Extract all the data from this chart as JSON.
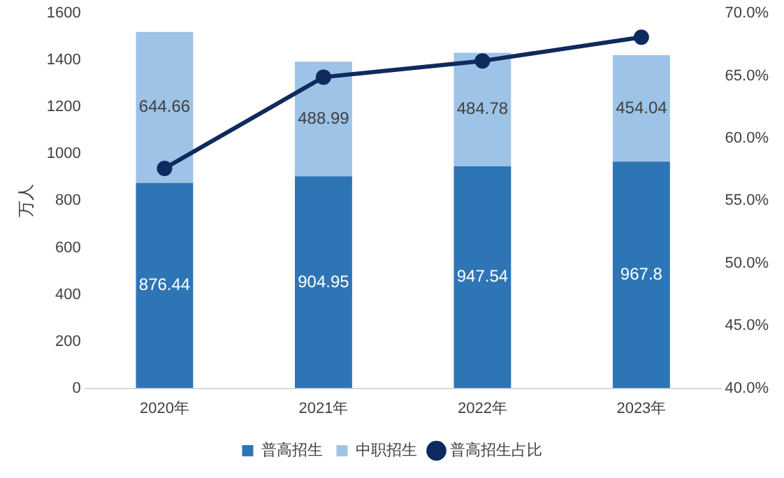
{
  "chart_data": {
    "type": "bar",
    "stacked": true,
    "ylabel": "万人",
    "categories": [
      "2020年",
      "2021年",
      "2022年",
      "2023年"
    ],
    "series": [
      {
        "name": "普高招生",
        "color": "#2e75b6",
        "values": [
          876.44,
          904.95,
          947.54,
          967.8
        ],
        "value_labels": [
          "876.44",
          "904.95",
          "947.54",
          "967.8"
        ]
      },
      {
        "name": "中职招生",
        "color": "#9dc3e6",
        "values": [
          644.66,
          488.99,
          484.78,
          454.04
        ],
        "value_labels": [
          "644.66",
          "488.99",
          "484.78",
          "454.04"
        ]
      },
      {
        "name": "普高招生占比",
        "type": "line",
        "axis": "y2",
        "color": "#0e2a5e",
        "values": [
          57.6,
          64.9,
          66.2,
          68.1
        ]
      }
    ],
    "ylim": [
      0,
      1600
    ],
    "yticks": [
      0,
      200,
      400,
      600,
      800,
      1000,
      1200,
      1400,
      1600
    ],
    "y2lim": [
      40,
      70
    ],
    "y2ticks": [
      {
        "value": 40,
        "label": "40.0%"
      },
      {
        "value": 45,
        "label": "45.0%"
      },
      {
        "value": 50,
        "label": "50.0%"
      },
      {
        "value": 55,
        "label": "55.0%"
      },
      {
        "value": 60,
        "label": "60.0%"
      },
      {
        "value": 65,
        "label": "65.0%"
      },
      {
        "value": 70,
        "label": "70.0%"
      }
    ],
    "grid": false,
    "legend": "bottom",
    "marker": "circle",
    "line_style": "solid"
  }
}
